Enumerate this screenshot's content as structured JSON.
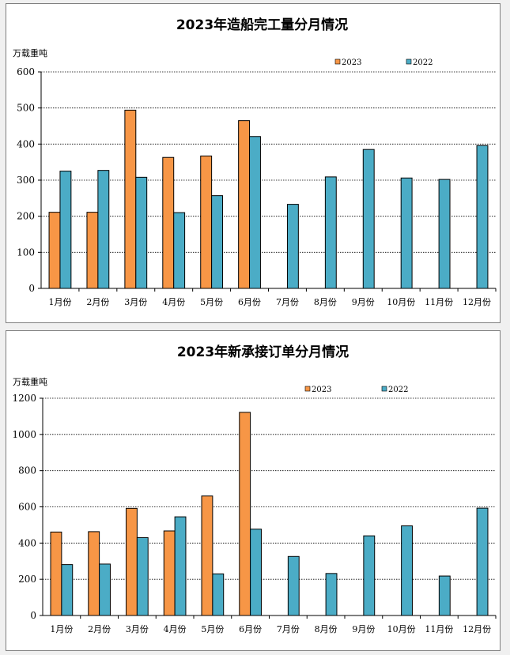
{
  "chart_data": [
    {
      "type": "bar",
      "title": "2023年造船完工量分月情况",
      "ylabel": "万载重吨",
      "ylim": [
        0,
        600
      ],
      "yticks": [
        0,
        100,
        200,
        300,
        400,
        500,
        600
      ],
      "categories": [
        "1月份",
        "2月份",
        "3月份",
        "4月份",
        "5月份",
        "6月份",
        "7月份",
        "8月份",
        "9月份",
        "10月份",
        "11月份",
        "12月份"
      ],
      "series": [
        {
          "name": "2023",
          "color": "#f79646",
          "values": [
            211,
            211,
            494,
            363,
            367,
            465,
            null,
            null,
            null,
            null,
            null,
            null
          ]
        },
        {
          "name": "2022",
          "color": "#4bacc6",
          "values": [
            325,
            327,
            308,
            210,
            257,
            421,
            233,
            309,
            385,
            306,
            302,
            396
          ]
        }
      ],
      "grid": true,
      "legend_position": "top-right"
    },
    {
      "type": "bar",
      "title": "2023年新承接订单分月情况",
      "ylabel": "万载重吨",
      "ylim": [
        0,
        1200
      ],
      "yticks": [
        0,
        200,
        400,
        600,
        800,
        1000,
        1200
      ],
      "categories": [
        "1月份",
        "2月份",
        "3月份",
        "4月份",
        "5月份",
        "6月份",
        "7月份",
        "8月份",
        "9月份",
        "10月份",
        "11月份",
        "12月份"
      ],
      "series": [
        {
          "name": "2023",
          "color": "#f79646",
          "values": [
            461,
            463,
            592,
            467,
            660,
            1122,
            null,
            null,
            null,
            null,
            null,
            null
          ]
        },
        {
          "name": "2022",
          "color": "#4bacc6",
          "values": [
            281,
            284,
            430,
            545,
            230,
            477,
            326,
            232,
            440,
            495,
            218,
            593
          ]
        }
      ],
      "grid": true,
      "legend_position": "top-right"
    }
  ]
}
